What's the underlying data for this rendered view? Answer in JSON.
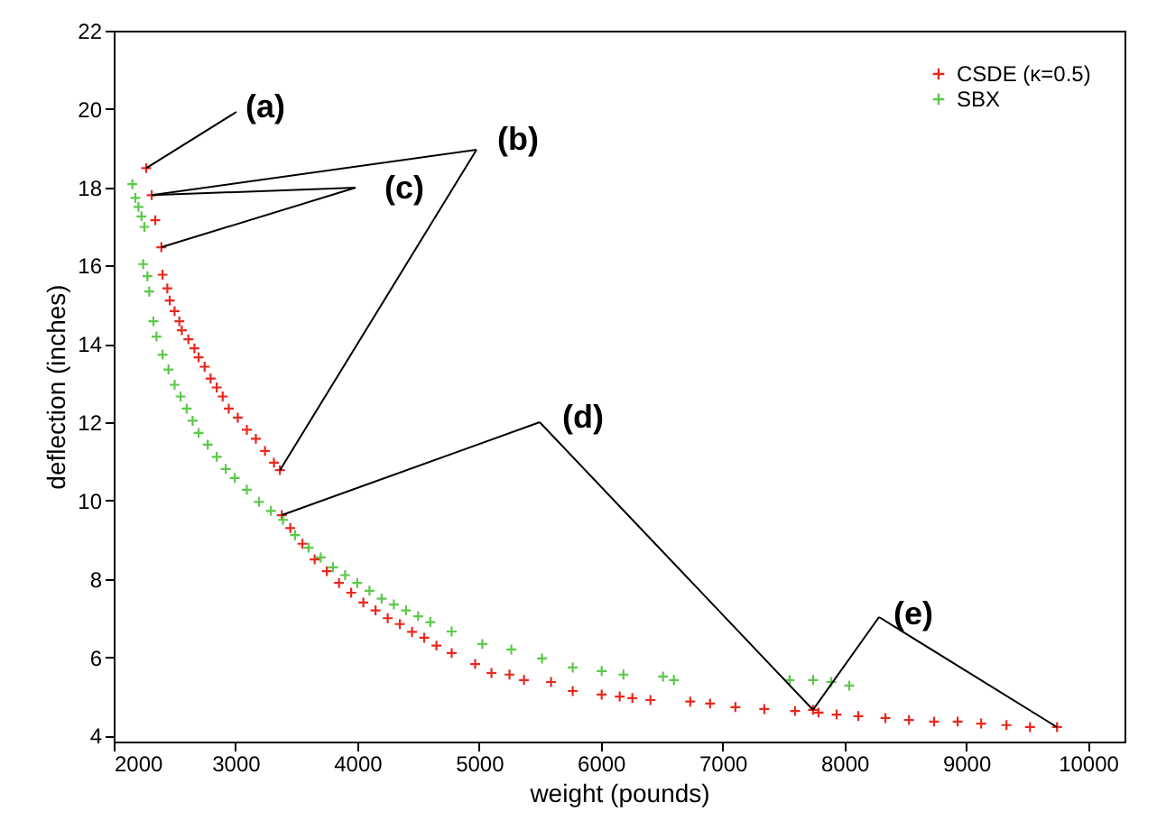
{
  "chart_data": {
    "type": "scatter",
    "xlabel": "weight (pounds)",
    "ylabel": "deflection (inches)",
    "xlim": [
      2000,
      10300
    ],
    "ylim": [
      3.85,
      22
    ],
    "xticks": [
      2000,
      3000,
      4000,
      5000,
      6000,
      7000,
      8000,
      9000,
      10000
    ],
    "yticks": [
      4,
      6,
      8,
      10,
      12,
      14,
      16,
      18,
      20,
      22
    ],
    "grid": false,
    "legend": "top right",
    "marker": "cross",
    "series": [
      {
        "name": "CSDE (κ=0.5)",
        "color": "#e8281e",
        "x": [
          2267,
          2312,
          2341,
          2391,
          2401,
          2440,
          2460,
          2500,
          2539,
          2559,
          2613,
          2663,
          2697,
          2747,
          2796,
          2846,
          2895,
          2945,
          3019,
          3093,
          3167,
          3242,
          3316,
          3365,
          3380,
          3450,
          3550,
          3650,
          3750,
          3850,
          3950,
          4050,
          4150,
          4250,
          4350,
          4450,
          4550,
          4650,
          4775,
          4968,
          5102,
          5250,
          5369,
          5591,
          5769,
          6007,
          6155,
          6259,
          6407,
          6734,
          6897,
          7105,
          7342,
          7595,
          7742,
          7788,
          7936,
          8114,
          8337,
          8530,
          8737,
          8930,
          9123,
          9331,
          9524,
          9746
        ],
        "values": [
          18.49,
          17.8,
          17.16,
          16.47,
          15.77,
          15.42,
          15.11,
          14.84,
          14.58,
          14.35,
          14.12,
          13.89,
          13.66,
          13.42,
          13.12,
          12.89,
          12.66,
          12.35,
          12.12,
          11.81,
          11.58,
          11.27,
          10.97,
          10.78,
          9.63,
          9.3,
          8.9,
          8.5,
          8.2,
          7.9,
          7.65,
          7.4,
          7.2,
          7.0,
          6.85,
          6.65,
          6.5,
          6.3,
          6.11,
          5.83,
          5.6,
          5.56,
          5.42,
          5.37,
          5.14,
          5.05,
          5.0,
          4.96,
          4.91,
          4.87,
          4.82,
          4.73,
          4.68,
          4.63,
          4.66,
          4.59,
          4.54,
          4.5,
          4.45,
          4.4,
          4.36,
          4.36,
          4.31,
          4.27,
          4.22,
          4.22
        ]
      },
      {
        "name": "SBX",
        "color": "#5cc84a",
        "x": [
          2153,
          2178,
          2203,
          2228,
          2252,
          2242,
          2277,
          2292,
          2326,
          2351,
          2401,
          2450,
          2500,
          2549,
          2599,
          2648,
          2697,
          2772,
          2846,
          2920,
          2994,
          3093,
          3193,
          3291,
          3390,
          3489,
          3600,
          3700,
          3800,
          3900,
          4000,
          4100,
          4200,
          4300,
          4400,
          4500,
          4600,
          4775,
          5027,
          5265,
          5517,
          5769,
          6007,
          6185,
          6511,
          6600,
          7550,
          7743,
          7892,
          8040
        ],
        "values": [
          18.08,
          17.73,
          17.5,
          17.26,
          16.99,
          16.04,
          15.73,
          15.34,
          14.58,
          14.19,
          13.73,
          13.35,
          12.96,
          12.66,
          12.35,
          12.04,
          11.73,
          11.43,
          11.12,
          10.81,
          10.58,
          10.28,
          9.97,
          9.74,
          9.51,
          9.12,
          8.8,
          8.55,
          8.3,
          8.1,
          7.9,
          7.7,
          7.5,
          7.35,
          7.2,
          7.05,
          6.9,
          6.66,
          6.34,
          6.2,
          5.97,
          5.74,
          5.65,
          5.56,
          5.51,
          5.42,
          5.42,
          5.42,
          5.37,
          5.28
        ]
      }
    ],
    "annotations": [
      {
        "text": "(a)",
        "x": 2267,
        "y": 18.49
      },
      {
        "text": "(b)",
        "x": 2312,
        "y": 17.8
      },
      {
        "text": "(c)",
        "x": 2312,
        "y": 17.8
      },
      {
        "text": "(d)",
        "x": 3380,
        "y": 9.63
      },
      {
        "text": "(e)",
        "x": 7742,
        "y": 4.66
      }
    ]
  }
}
